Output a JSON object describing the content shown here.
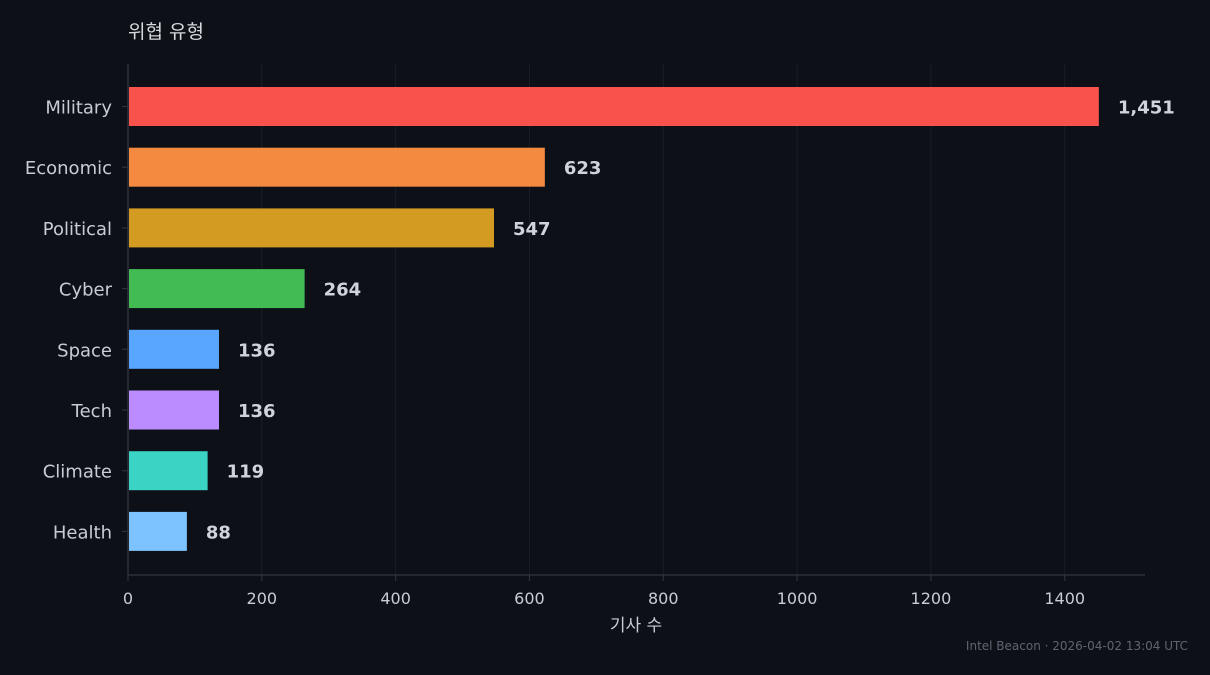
{
  "chart_data": {
    "type": "bar",
    "orientation": "horizontal",
    "title": "위협 유형",
    "xlabel": "기사 수",
    "ylabel": "",
    "categories": [
      "Military",
      "Economic",
      "Political",
      "Cyber",
      "Space",
      "Tech",
      "Climate",
      "Health"
    ],
    "values": [
      1451,
      623,
      547,
      264,
      136,
      136,
      119,
      88
    ],
    "value_labels": [
      "1,451",
      "623",
      "547",
      "264",
      "136",
      "136",
      "119",
      "88"
    ],
    "colors": [
      "#f9524c",
      "#f38a3f",
      "#d49b23",
      "#42bb53",
      "#58a6ff",
      "#bb8cff",
      "#3ad3c4",
      "#7dc3ff"
    ],
    "xlim": [
      0,
      1520
    ],
    "xticks": [
      0,
      200,
      400,
      600,
      800,
      1000,
      1200,
      1400
    ],
    "grid": true,
    "legend": "none"
  },
  "footer": "Intel Beacon · 2026-04-02 13:04 UTC"
}
